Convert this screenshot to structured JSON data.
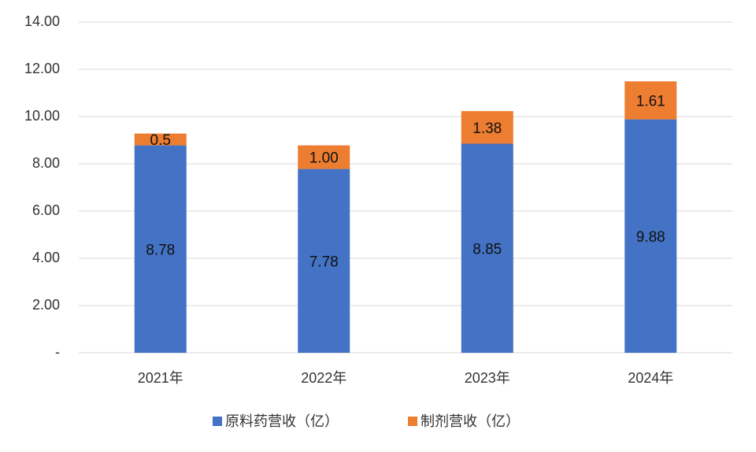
{
  "chart_data": {
    "type": "stacked-bar",
    "categories": [
      "2021年",
      "2022年",
      "2023年",
      "2024年"
    ],
    "series": [
      {
        "name": "原料药营收（亿）",
        "color": "#4472c4",
        "values": [
          8.78,
          7.78,
          8.85,
          9.88
        ]
      },
      {
        "name": "制剂营收（亿）",
        "color": "#ed7d31",
        "values": [
          0.5,
          1,
          1.38,
          1.61
        ],
        "value_labels": [
          "0.5",
          "1.00",
          "1.38",
          "1.61"
        ]
      }
    ],
    "ylim": [
      0,
      14
    ],
    "yticks": [
      {
        "value": 0,
        "label": "-"
      },
      {
        "value": 2,
        "label": "2.00"
      },
      {
        "value": 4,
        "label": "4.00"
      },
      {
        "value": 6,
        "label": "6.00"
      },
      {
        "value": 8,
        "label": "8.00"
      },
      {
        "value": 10,
        "label": "10.00"
      },
      {
        "value": 12,
        "label": "12.00"
      },
      {
        "value": 14,
        "label": "14.00"
      }
    ],
    "grid": true,
    "legend": "bottom"
  }
}
